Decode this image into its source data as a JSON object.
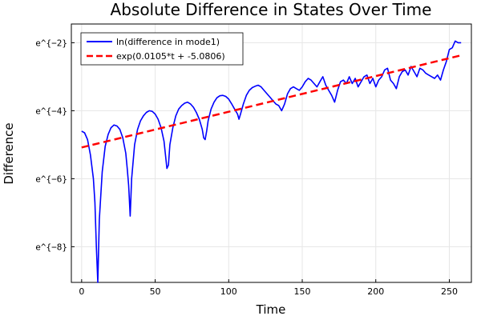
{
  "chart_data": {
    "type": "line",
    "title": "Absolute Difference in States Over Time",
    "xlabel": "Time",
    "ylabel": "Difference",
    "xlim": [
      -7,
      265
    ],
    "ylim": [
      -9.05,
      -1.45
    ],
    "y_scale": "log (ticks shown as powers of e)",
    "grid": true,
    "legend_position": "top-left",
    "x_ticks": [
      0,
      50,
      100,
      150,
      200,
      250
    ],
    "x_tick_labels": [
      "0",
      "50",
      "100",
      "150",
      "200",
      "250"
    ],
    "y_ticks": [
      -8,
      -6,
      -4,
      -2
    ],
    "y_tick_labels": [
      "e^{−8}",
      "e^{−6}",
      "e^{−4}",
      "e^{−2}"
    ],
    "series": [
      {
        "name": "ln(difference in mode1)",
        "color": "#0000ff",
        "style": "solid",
        "x": [
          0,
          2,
          4,
          6,
          8,
          9,
          10,
          11,
          12,
          14,
          16,
          18,
          20,
          22,
          24,
          26,
          28,
          30,
          31,
          32,
          33,
          34,
          36,
          38,
          40,
          42,
          44,
          46,
          48,
          50,
          52,
          54,
          56,
          57,
          58,
          59,
          60,
          62,
          64,
          66,
          68,
          70,
          72,
          74,
          76,
          78,
          80,
          82,
          83,
          84,
          85,
          86,
          88,
          90,
          92,
          94,
          96,
          98,
          100,
          102,
          104,
          106,
          107,
          108,
          110,
          112,
          114,
          116,
          118,
          120,
          122,
          124,
          126,
          128,
          130,
          132,
          134,
          136,
          138,
          140,
          142,
          144,
          146,
          148,
          150,
          152,
          154,
          156,
          158,
          160,
          162,
          164,
          166,
          168,
          170,
          172,
          174,
          176,
          178,
          180,
          182,
          184,
          186,
          188,
          190,
          192,
          194,
          196,
          198,
          200,
          202,
          204,
          206,
          208,
          210,
          212,
          214,
          216,
          218,
          220,
          222,
          224,
          226,
          228,
          230,
          232,
          234,
          236,
          238,
          240,
          242,
          244,
          246,
          248,
          250,
          252,
          254,
          256,
          258
        ],
        "y": [
          -4.6,
          -4.65,
          -4.85,
          -5.3,
          -6.0,
          -6.7,
          -8.0,
          -9.05,
          -7.2,
          -5.8,
          -5.05,
          -4.7,
          -4.5,
          -4.42,
          -4.45,
          -4.55,
          -4.8,
          -5.25,
          -5.7,
          -6.2,
          -7.1,
          -6.0,
          -5.0,
          -4.55,
          -4.3,
          -4.15,
          -4.05,
          -4.0,
          -4.02,
          -4.1,
          -4.25,
          -4.5,
          -4.9,
          -5.3,
          -5.7,
          -5.6,
          -5.0,
          -4.5,
          -4.15,
          -3.95,
          -3.85,
          -3.78,
          -3.75,
          -3.8,
          -3.9,
          -4.05,
          -4.25,
          -4.55,
          -4.8,
          -4.85,
          -4.6,
          -4.3,
          -3.95,
          -3.75,
          -3.62,
          -3.56,
          -3.55,
          -3.58,
          -3.66,
          -3.8,
          -3.95,
          -4.1,
          -4.25,
          -4.1,
          -3.8,
          -3.55,
          -3.4,
          -3.32,
          -3.28,
          -3.25,
          -3.3,
          -3.4,
          -3.5,
          -3.6,
          -3.7,
          -3.8,
          -3.85,
          -4.0,
          -3.8,
          -3.5,
          -3.35,
          -3.3,
          -3.35,
          -3.4,
          -3.3,
          -3.15,
          -3.05,
          -3.1,
          -3.2,
          -3.3,
          -3.15,
          -3.0,
          -3.25,
          -3.4,
          -3.55,
          -3.75,
          -3.4,
          -3.15,
          -3.1,
          -3.2,
          -3.0,
          -3.2,
          -3.05,
          -3.3,
          -3.15,
          -3.0,
          -2.95,
          -3.2,
          -3.05,
          -3.3,
          -3.1,
          -3.0,
          -2.8,
          -2.75,
          -3.1,
          -3.2,
          -3.35,
          -3.0,
          -2.85,
          -2.8,
          -2.95,
          -2.7,
          -2.85,
          -3.0,
          -2.75,
          -2.8,
          -2.9,
          -2.95,
          -3.0,
          -3.05,
          -2.95,
          -3.1,
          -2.8,
          -2.55,
          -2.2,
          -2.15,
          -1.95,
          -2.0,
          -2.0
        ]
      },
      {
        "name": "exp(0.0105*t + -5.0806)",
        "color": "#ff0000",
        "style": "dashed",
        "slope": 0.0105,
        "intercept": -5.0806,
        "x": [
          0,
          258
        ],
        "y": [
          -5.0806,
          -2.3716
        ]
      }
    ]
  }
}
